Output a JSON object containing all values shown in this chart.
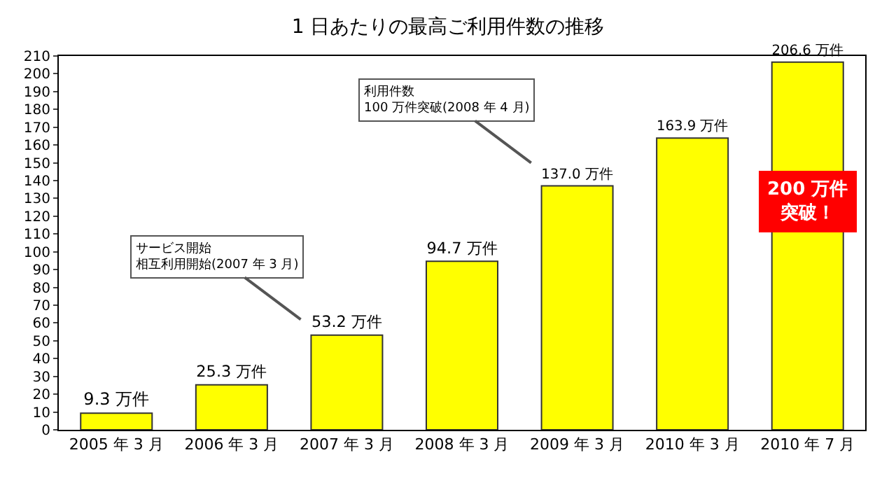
{
  "chart_data": {
    "type": "bar",
    "title": "1 日あたりの最高ご利用件数の推移",
    "categories": [
      "2005 年 3 月",
      "2006 年 3 月",
      "2007 年 3 月",
      "2008 年 3 月",
      "2009 年 3 月",
      "2010 年 3 月",
      "2010 年 7 月"
    ],
    "values": [
      9.3,
      25.3,
      53.2,
      94.7,
      137.0,
      163.9,
      206.6
    ],
    "value_labels": [
      "9.3 万件",
      "25.3 万件",
      "53.2 万件",
      "94.7 万件",
      "137.0 万件",
      "163.9 万件",
      "206.6 万件"
    ],
    "color": "#ffff00",
    "ylim": [
      0,
      210
    ],
    "yticks": [
      0,
      10,
      20,
      30,
      40,
      50,
      60,
      70,
      80,
      90,
      100,
      110,
      120,
      130,
      140,
      150,
      160,
      170,
      180,
      190,
      200,
      210
    ],
    "grid": false,
    "annotations": [
      "サービス開始相互利用開始(2007 年 3 月)",
      "利用件数 100 万件突破(2008 年 4 月)",
      "200 万件突破！"
    ]
  }
}
